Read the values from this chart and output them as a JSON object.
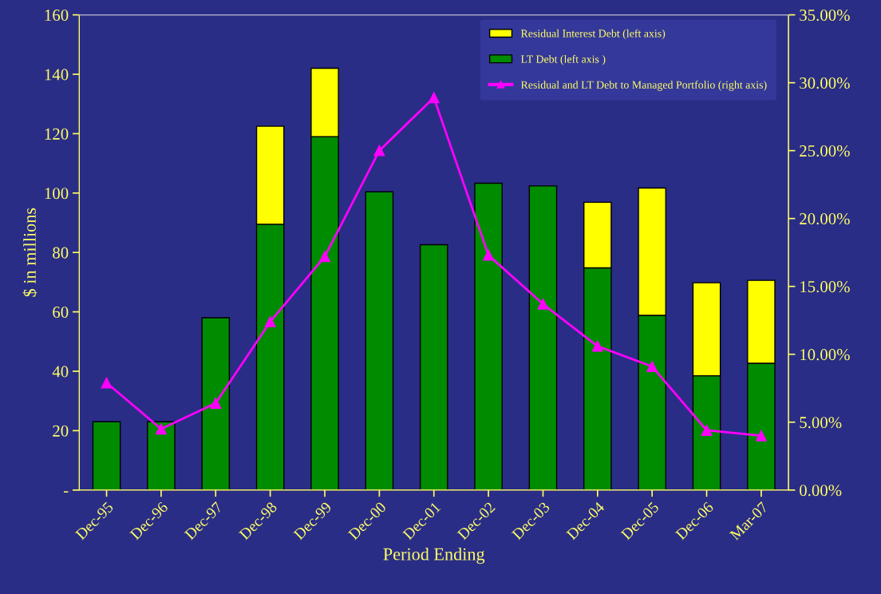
{
  "chart_data": {
    "type": "bar",
    "stacked": true,
    "xlabel": "Period Ending",
    "ylabel": "$ in millions",
    "categories": [
      "Dec-95",
      "Dec-96",
      "Dec-97",
      "Dec-98",
      "Dec-99",
      "Dec-00",
      "Dec-01",
      "Dec-02",
      "Dec-03",
      "Dec-04",
      "Dec-05",
      "Dec-06",
      "Mar-07"
    ],
    "series": [
      {
        "name": "LT Debt (left axis )",
        "color": "#008c00",
        "values": [
          23,
          23,
          58,
          89.5,
          119,
          100.4,
          82.6,
          103.3,
          102.4,
          74.8,
          58.8,
          38.5,
          42.7
        ]
      },
      {
        "name": "Residual Interest Debt (left axis)",
        "color": "#ffff00",
        "values": [
          null,
          null,
          null,
          33,
          23,
          null,
          null,
          null,
          null,
          22.1,
          42.9,
          31.3,
          27.9
        ]
      },
      {
        "name": "Residual and LT Debt to Managed Portfolio (right axis)",
        "type": "line",
        "axis": "y2",
        "color": "#ff00ff",
        "marker": "triangle",
        "values": [
          7.9,
          4.5,
          6.4,
          12.4,
          17.2,
          25.0,
          28.9,
          17.3,
          13.7,
          10.6,
          9.1,
          4.4,
          4.0
        ]
      }
    ],
    "ylim": [
      0,
      160
    ],
    "yticks": [
      {
        "value": 0,
        "label": "-"
      },
      20,
      40,
      60,
      80,
      100,
      120,
      140,
      160
    ],
    "y2lim": [
      0,
      35
    ],
    "y2ticks": [
      {
        "value": 0,
        "label": "0.00%"
      },
      {
        "value": 5,
        "label": "5.00%"
      },
      {
        "value": 10,
        "label": "10.00%"
      },
      {
        "value": 15,
        "label": "15.00%"
      },
      {
        "value": 20,
        "label": "20.00%"
      },
      {
        "value": 25,
        "label": "25.00%"
      },
      {
        "value": 30,
        "label": "30.00%"
      },
      {
        "value": 35,
        "label": "35.00%"
      }
    ],
    "legend": "top right",
    "grid": false
  }
}
